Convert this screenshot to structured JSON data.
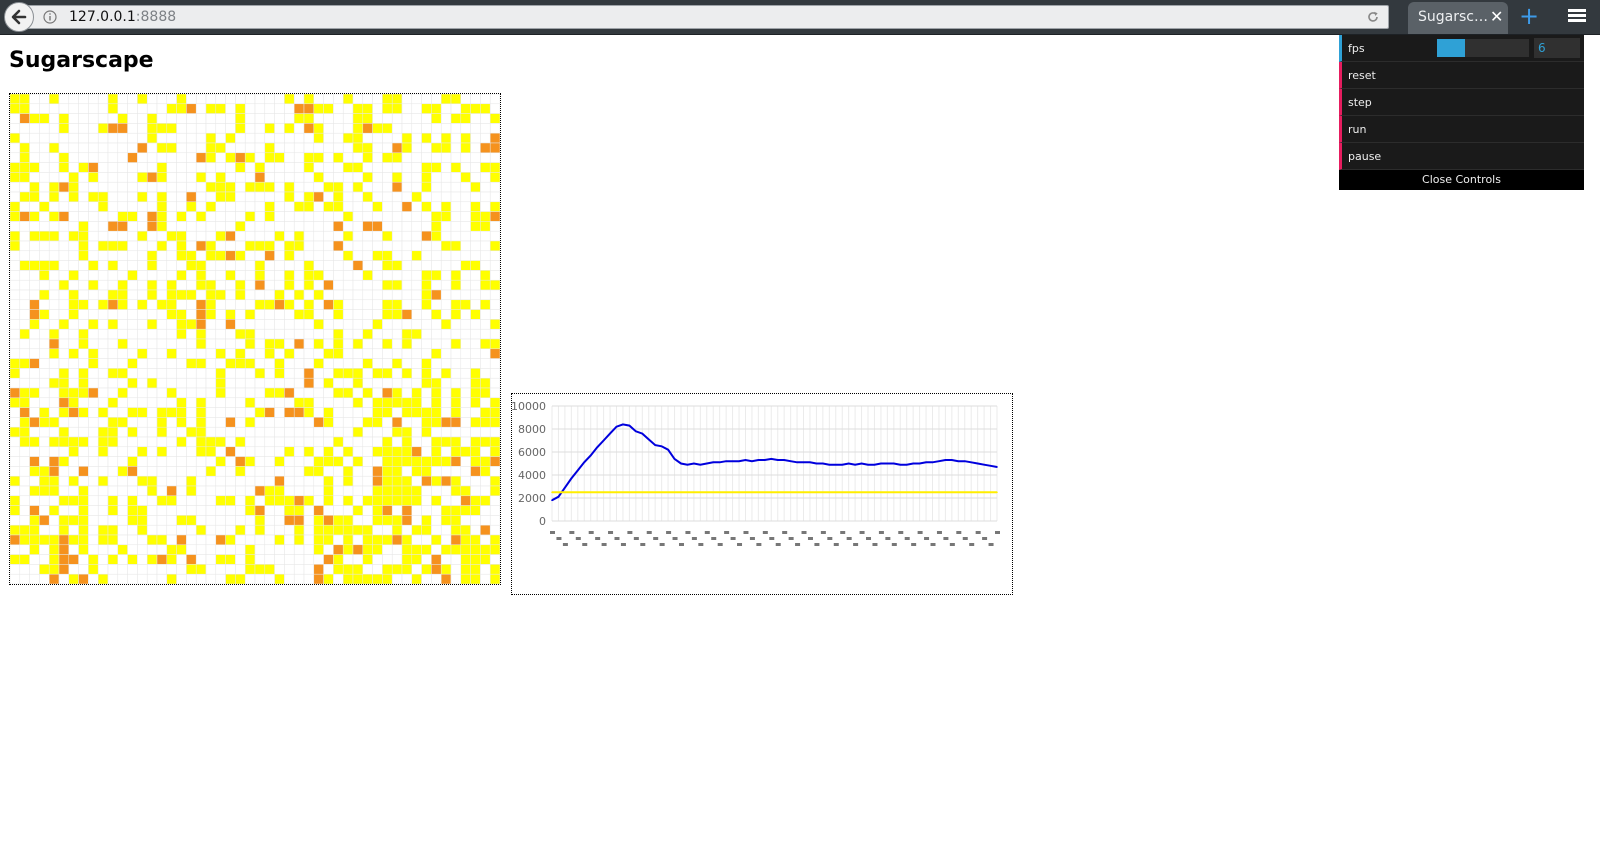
{
  "browser": {
    "url_host": "127.0.0.1",
    "url_port": ":8888",
    "tab_title": "Sugarscape",
    "new_tab_symbol": "+",
    "close_tab_symbol": "✕",
    "icons": [
      "back-arrow-icon",
      "info-icon",
      "reload-icon",
      "hamburger-menu-icon"
    ]
  },
  "page": {
    "title": "Sugarscape"
  },
  "grid": {
    "rows": 50,
    "cols": 50,
    "colors": {
      "empty": "#ffffff",
      "gridline": "#e6e6e6",
      "sugar": "#ffff00",
      "agent": "#f5921e"
    }
  },
  "controls": {
    "fps": {
      "label": "fps",
      "value": "6",
      "level": 0.3
    },
    "buttons": [
      {
        "label": "reset"
      },
      {
        "label": "step"
      },
      {
        "label": "run"
      },
      {
        "label": "pause"
      }
    ],
    "close_label": "Close Controls",
    "colors": {
      "number_accent": "#2fa1d6",
      "button_accent": "#e61d5f"
    }
  },
  "chart_data": {
    "type": "line",
    "title": "",
    "xlabel": "",
    "ylabel": "",
    "ylim": [
      0,
      10000
    ],
    "y_ticks": [
      "10000",
      "8000",
      "6000",
      "4000",
      "2000",
      "0"
    ],
    "grid": true,
    "series": [
      {
        "color": "#0000dd",
        "values": [
          1800,
          2100,
          2900,
          3700,
          4400,
          5100,
          5700,
          6400,
          7000,
          7600,
          8200,
          8400,
          8300,
          7800,
          7600,
          7100,
          6600,
          6500,
          6200,
          5400,
          5000,
          4900,
          5000,
          4900,
          5000,
          5100,
          5100,
          5200,
          5200,
          5200,
          5300,
          5200,
          5300,
          5300,
          5400,
          5300,
          5300,
          5200,
          5100,
          5100,
          5100,
          5000,
          5000,
          4900,
          4900,
          4900,
          5000,
          4900,
          5000,
          4900,
          4900,
          5000,
          5000,
          5000,
          4900,
          4900,
          5000,
          5000,
          5100,
          5100,
          5200,
          5300,
          5300,
          5200,
          5200,
          5100,
          5000,
          4900,
          4800,
          4700
        ]
      },
      {
        "color": "#ffee00",
        "values": [
          2500,
          2500,
          2500,
          2500,
          2500,
          2500,
          2500,
          2500,
          2500,
          2500,
          2500,
          2500,
          2500,
          2500,
          2500,
          2500,
          2500,
          2500,
          2500,
          2500,
          2500,
          2500,
          2500,
          2500,
          2500,
          2500,
          2500,
          2500,
          2500,
          2500,
          2500,
          2500,
          2500,
          2500,
          2500,
          2500,
          2500,
          2500,
          2500,
          2500,
          2500,
          2500,
          2500,
          2500,
          2500,
          2500,
          2500,
          2500,
          2500,
          2500,
          2500,
          2500,
          2500,
          2500,
          2500,
          2500,
          2500,
          2500,
          2500,
          2500,
          2500,
          2500,
          2500,
          2500,
          2500,
          2500,
          2500,
          2500,
          2500,
          2500
        ]
      }
    ]
  }
}
